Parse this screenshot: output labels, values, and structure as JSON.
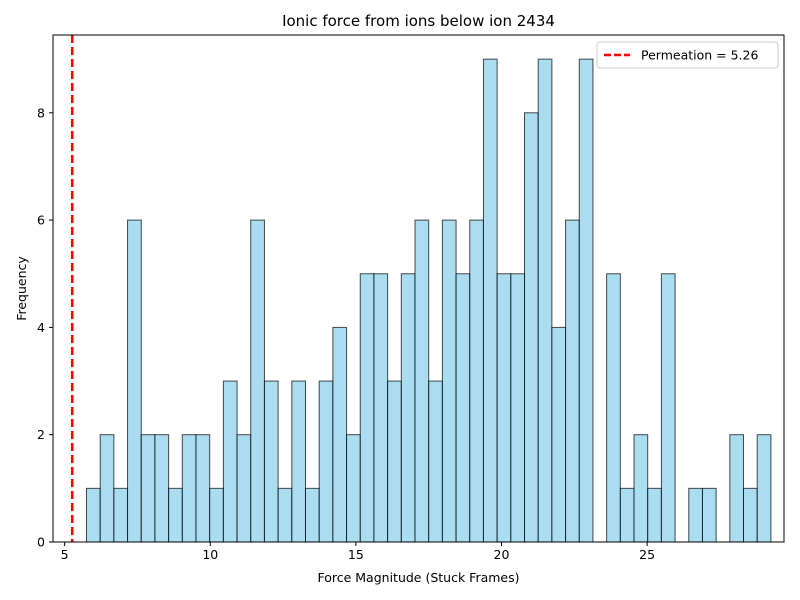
{
  "chart_data": {
    "type": "bar",
    "title": "Ionic force from ions below ion 2434",
    "xlabel": "Force Magnitude (Stuck Frames)",
    "ylabel": "Frequency",
    "xlim": [
      4.6,
      29.7
    ],
    "ylim": [
      0,
      9.45
    ],
    "xticks": [
      5,
      10,
      15,
      20,
      25
    ],
    "yticks": [
      0,
      2,
      4,
      6,
      8
    ],
    "grid": false,
    "legend": {
      "placement": "top-right",
      "entries": [
        "Permeation = 5.26"
      ]
    },
    "bin_start": 5.75,
    "bin_width": 0.47,
    "values": [
      1,
      2,
      1,
      6,
      2,
      2,
      1,
      2,
      2,
      1,
      3,
      2,
      6,
      3,
      1,
      3,
      1,
      3,
      4,
      2,
      5,
      5,
      3,
      5,
      6,
      3,
      6,
      5,
      6,
      9,
      5,
      5,
      8,
      9,
      4,
      6,
      9,
      0,
      5,
      1,
      2,
      1,
      5,
      0,
      1,
      1,
      0,
      2,
      1,
      2
    ],
    "permeation_line": {
      "x": 5.26,
      "label": "Permeation = 5.26",
      "color": "#ff0000"
    },
    "colors": {
      "bar_fill": "#87ceeb",
      "bar_edge": "#000000"
    }
  }
}
